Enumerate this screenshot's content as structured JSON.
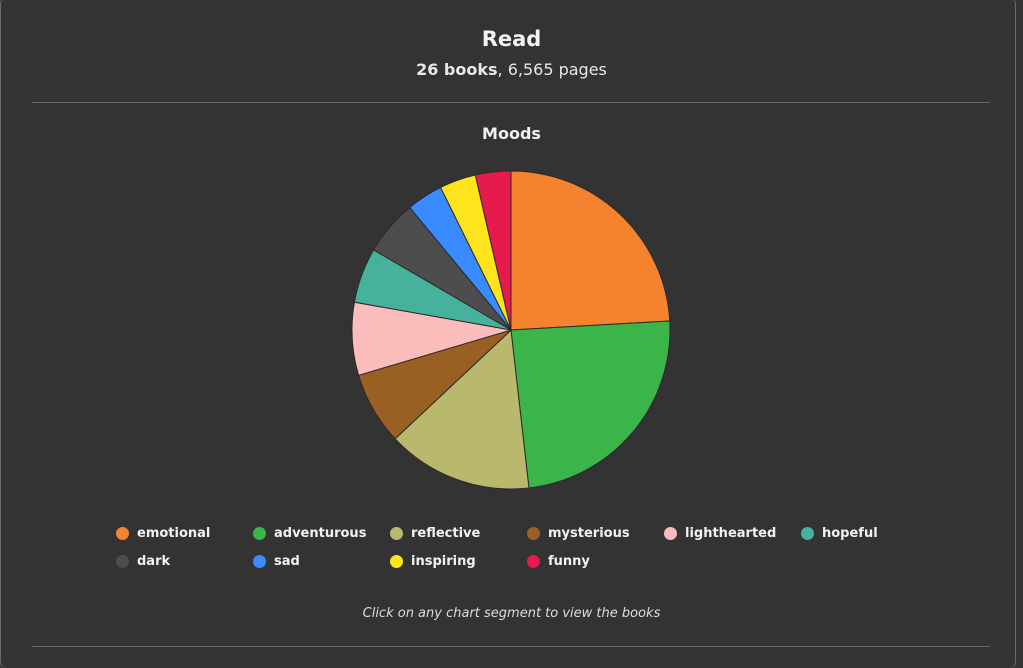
{
  "header": {
    "title": "Read",
    "books": "26 books",
    "pages": ", 6,565 pages"
  },
  "hint": "Click on any chart segment to view the books",
  "chart_data": {
    "type": "pie",
    "title": "Moods",
    "legend": "bottom",
    "categories": [
      "emotional",
      "adventurous",
      "reflective",
      "mysterious",
      "lighthearted",
      "hopeful",
      "dark",
      "sad",
      "inspiring",
      "funny"
    ],
    "values": [
      24.1,
      24.1,
      14.8,
      7.4,
      7.4,
      5.6,
      5.6,
      3.7,
      3.7,
      3.6
    ],
    "colors": [
      "#f5822e",
      "#3bb54a",
      "#bab86c",
      "#9a5f22",
      "#fbbcbc",
      "#46b29d",
      "#4d4d4d",
      "#3a8bff",
      "#fee41c",
      "#e61a4c"
    ]
  }
}
